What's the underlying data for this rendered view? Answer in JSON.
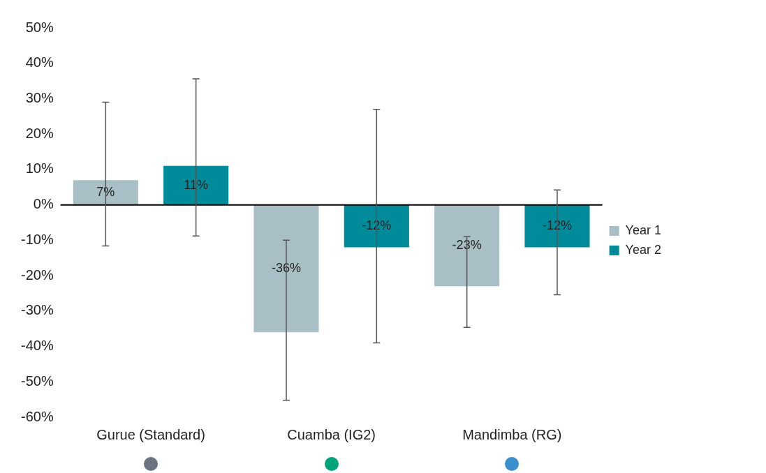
{
  "chart_data": {
    "type": "bar",
    "categories": [
      "Gurue (Standard)",
      "Cuamba (IG2)",
      "Mandimba (RG)"
    ],
    "series": [
      {
        "name": "Year 1",
        "color": "#a9bfc6",
        "values": [
          7,
          -36,
          -23
        ],
        "value_labels": [
          "7%",
          "-36%",
          "-23%"
        ],
        "errors": [
          [
            -11.6,
            29
          ],
          [
            -55.2,
            -10
          ],
          [
            -34.6,
            -9
          ]
        ]
      },
      {
        "name": "Year 2",
        "color": "#008b9a",
        "values": [
          11,
          -12,
          -12
        ],
        "value_labels": [
          "11%",
          "-12%",
          "-12%"
        ],
        "errors": [
          [
            -8.8,
            35.6
          ],
          [
            -39,
            27
          ],
          [
            -25.4,
            4.2
          ]
        ]
      }
    ],
    "ylim": [
      -60,
      50
    ],
    "yticks": [
      {
        "value": -60,
        "label": "-60%"
      },
      {
        "value": -50,
        "label": "-50%"
      },
      {
        "value": -40,
        "label": "-40%"
      },
      {
        "value": -30,
        "label": "-30%"
      },
      {
        "value": -20,
        "label": "-20%"
      },
      {
        "value": -10,
        "label": "-10%"
      },
      {
        "value": 0,
        "label": "0%"
      },
      {
        "value": 10,
        "label": "10%"
      },
      {
        "value": 20,
        "label": "20%"
      },
      {
        "value": 30,
        "label": "30%"
      },
      {
        "value": 40,
        "label": "40%"
      },
      {
        "value": 50,
        "label": "50%"
      }
    ],
    "legend": "right",
    "ref_lines": [
      {
        "axis": "y",
        "value": 0,
        "color": "#000000"
      }
    ]
  }
}
